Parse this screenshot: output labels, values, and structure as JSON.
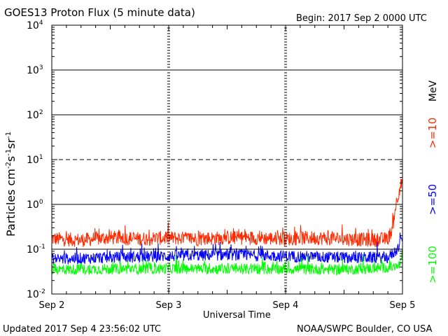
{
  "chart_data": {
    "type": "line",
    "title": "GOES13 Proton Flux (5 minute data)",
    "begin_label": "Begin: 2017 Sep 2 0000 UTC",
    "xlabel": "Universal Time",
    "ylabel_main": "Particles cm",
    "ylabel_sup1": "-2",
    "ylabel_mid1": "s",
    "ylabel_sup2": "-1",
    "ylabel_mid2": "sr",
    "ylabel_sup3": "-1",
    "x_start": "2017-09-02",
    "x_end": "2017-09-05",
    "x_ticks": [
      "Sep 2",
      "Sep 3",
      "Sep 4",
      "Sep 5"
    ],
    "y_scale": "log",
    "ylim": [
      0.01,
      10000
    ],
    "y_tick_base": "10",
    "y_tick_exponents": [
      "4",
      "3",
      "2",
      "1",
      "0",
      "-1",
      "-2"
    ],
    "threshold_lines": [
      1000,
      100,
      10,
      1,
      0.1
    ],
    "dashed_threshold": 10,
    "unit_label": "MeV",
    "series": [
      {
        "name": ">=10",
        "color": "#ff2a00",
        "points": [
          [
            "2017-09-02T00:00",
            0.17
          ],
          [
            "2017-09-02T06:00",
            0.16
          ],
          [
            "2017-09-02T12:00",
            0.18
          ],
          [
            "2017-09-02T18:00",
            0.17
          ],
          [
            "2017-09-03T00:00",
            0.18
          ],
          [
            "2017-09-03T06:00",
            0.17
          ],
          [
            "2017-09-03T12:00",
            0.18
          ],
          [
            "2017-09-03T18:00",
            0.18
          ],
          [
            "2017-09-04T00:00",
            0.17
          ],
          [
            "2017-09-04T06:00",
            0.18
          ],
          [
            "2017-09-04T12:00",
            0.17
          ],
          [
            "2017-09-04T18:00",
            0.16
          ],
          [
            "2017-09-04T21:00",
            0.17
          ],
          [
            "2017-09-04T22:00",
            0.3
          ],
          [
            "2017-09-04T22:30",
            0.8
          ],
          [
            "2017-09-04T23:00",
            1.5
          ],
          [
            "2017-09-04T23:30",
            2.5
          ],
          [
            "2017-09-04T23:55",
            3.2
          ]
        ]
      },
      {
        "name": ">=50",
        "color": "#0000ff",
        "points": [
          [
            "2017-09-02T00:00",
            0.06
          ],
          [
            "2017-09-02T12:00",
            0.065
          ],
          [
            "2017-09-03T00:00",
            0.07
          ],
          [
            "2017-09-03T12:00",
            0.075
          ],
          [
            "2017-09-04T00:00",
            0.07
          ],
          [
            "2017-09-04T12:00",
            0.065
          ],
          [
            "2017-09-04T21:00",
            0.065
          ],
          [
            "2017-09-04T23:00",
            0.1
          ],
          [
            "2017-09-04T23:55",
            0.18
          ]
        ]
      },
      {
        "name": ">=100",
        "color": "#00ff00",
        "points": [
          [
            "2017-09-02T00:00",
            0.035
          ],
          [
            "2017-09-02T12:00",
            0.036
          ],
          [
            "2017-09-03T00:00",
            0.037
          ],
          [
            "2017-09-03T12:00",
            0.036
          ],
          [
            "2017-09-04T00:00",
            0.036
          ],
          [
            "2017-09-04T12:00",
            0.035
          ],
          [
            "2017-09-04T23:00",
            0.04
          ],
          [
            "2017-09-04T23:55",
            0.055
          ]
        ]
      }
    ]
  },
  "footer": {
    "updated": "Updated 2017 Sep  4 23:56:02 UTC",
    "source": "NOAA/SWPC Boulder, CO USA"
  }
}
